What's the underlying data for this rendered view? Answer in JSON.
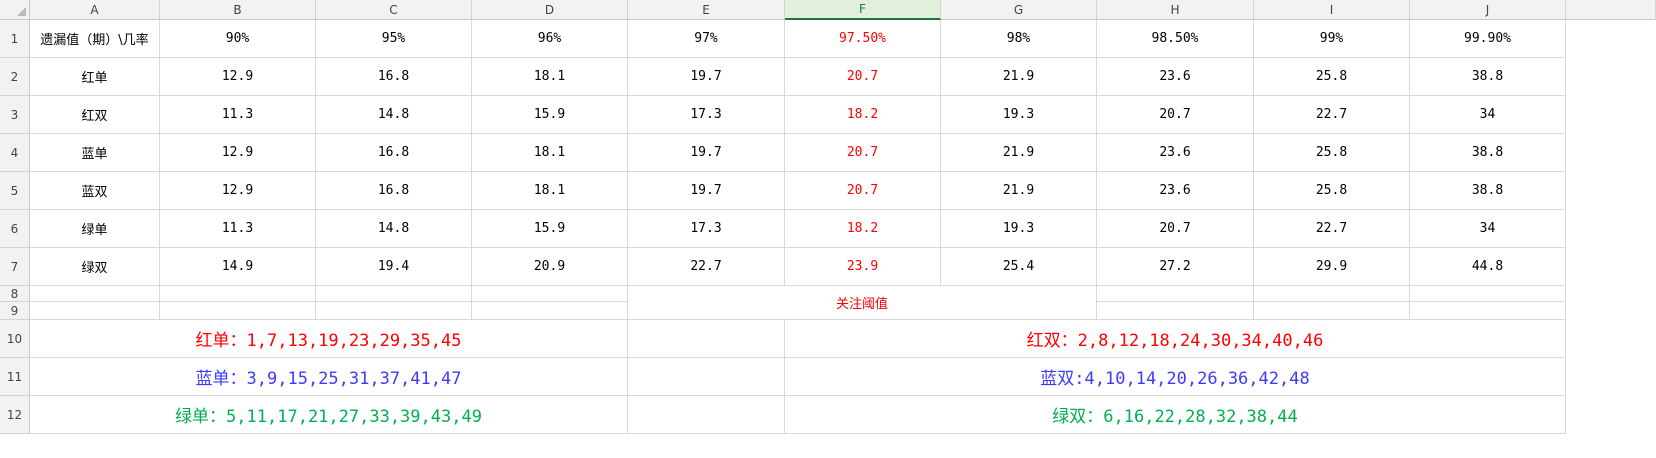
{
  "columns": [
    "A",
    "B",
    "C",
    "D",
    "E",
    "F",
    "G",
    "H",
    "I",
    "J"
  ],
  "selected_column": "F",
  "rows": [
    "1",
    "2",
    "3",
    "4",
    "5",
    "6",
    "7",
    "8",
    "9",
    "10",
    "11",
    "12"
  ],
  "header_row": {
    "label": "遗漏值（期）\\几率",
    "probabilities": [
      "90%",
      "95%",
      "96%",
      "97%",
      "97.50%",
      "98%",
      "98.50%",
      "99%",
      "99.90%"
    ]
  },
  "data_rows": [
    {
      "label": "红单",
      "values": [
        "12.9",
        "16.8",
        "18.1",
        "19.7",
        "20.7",
        "21.9",
        "23.6",
        "25.8",
        "38.8"
      ]
    },
    {
      "label": "红双",
      "values": [
        "11.3",
        "14.8",
        "15.9",
        "17.3",
        "18.2",
        "19.3",
        "20.7",
        "22.7",
        "34"
      ]
    },
    {
      "label": "蓝单",
      "values": [
        "12.9",
        "16.8",
        "18.1",
        "19.7",
        "20.7",
        "21.9",
        "23.6",
        "25.8",
        "38.8"
      ]
    },
    {
      "label": "蓝双",
      "values": [
        "12.9",
        "16.8",
        "18.1",
        "19.7",
        "20.7",
        "21.9",
        "23.6",
        "25.8",
        "38.8"
      ]
    },
    {
      "label": "绿单",
      "values": [
        "11.3",
        "14.8",
        "15.9",
        "17.3",
        "18.2",
        "19.3",
        "20.7",
        "22.7",
        "34"
      ]
    },
    {
      "label": "绿双",
      "values": [
        "14.9",
        "19.4",
        "20.9",
        "22.7",
        "23.9",
        "25.4",
        "27.2",
        "29.9",
        "44.8"
      ]
    }
  ],
  "note": "关注阈值",
  "groups": {
    "red_single": "红单：1,7,13,19,23,29,35,45",
    "red_double": "红双：2,8,12,18,24,30,34,40,46",
    "blue_single": "蓝单：3,9,15,25,31,37,41,47",
    "blue_double": "蓝双:4,10,14,20,26,36,42,48",
    "green_single": "绿单：5,11,17,21,27,33,39,43,49",
    "green_double": "绿双：6,16,22,28,32,38,44"
  },
  "colors": {
    "red": "#ff0000",
    "blue": "#3b3bff",
    "green": "#00b050",
    "header_bg": "#f2f2f2",
    "selected_header": "#217346"
  }
}
